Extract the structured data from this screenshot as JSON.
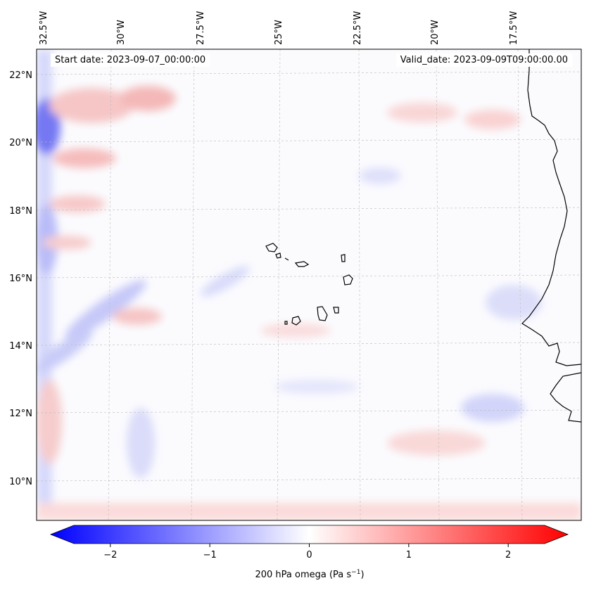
{
  "map": {
    "start_date": "Start date: 2023-09-07_00:00:00",
    "valid_date": "Valid_date: 2023-09-09T09:00:00.00",
    "lon_labels": [
      "32.5°W",
      "30°W",
      "27.5°W",
      "25°W",
      "22.5°W",
      "20°W",
      "17.5°W"
    ],
    "lat_labels": [
      "22°N",
      "20°N",
      "18°N",
      "16°N",
      "14°N",
      "12°N",
      "10°N"
    ]
  },
  "colorbar": {
    "label": "200 hPa omega (Pa s",
    "label_exponent": "−1",
    "label_close": ")",
    "ticks": [
      "−2",
      "−1",
      "0",
      "1",
      "2"
    ],
    "tick_values": [
      -2,
      -1,
      0,
      1,
      2
    ],
    "range": [
      -2.6,
      2.6
    ],
    "colors": {
      "negative": "#0000ff",
      "zero": "#ffffff",
      "positive": "#ff0000"
    }
  },
  "features": [
    "coastline-africa",
    "cape-verde-islands"
  ]
}
